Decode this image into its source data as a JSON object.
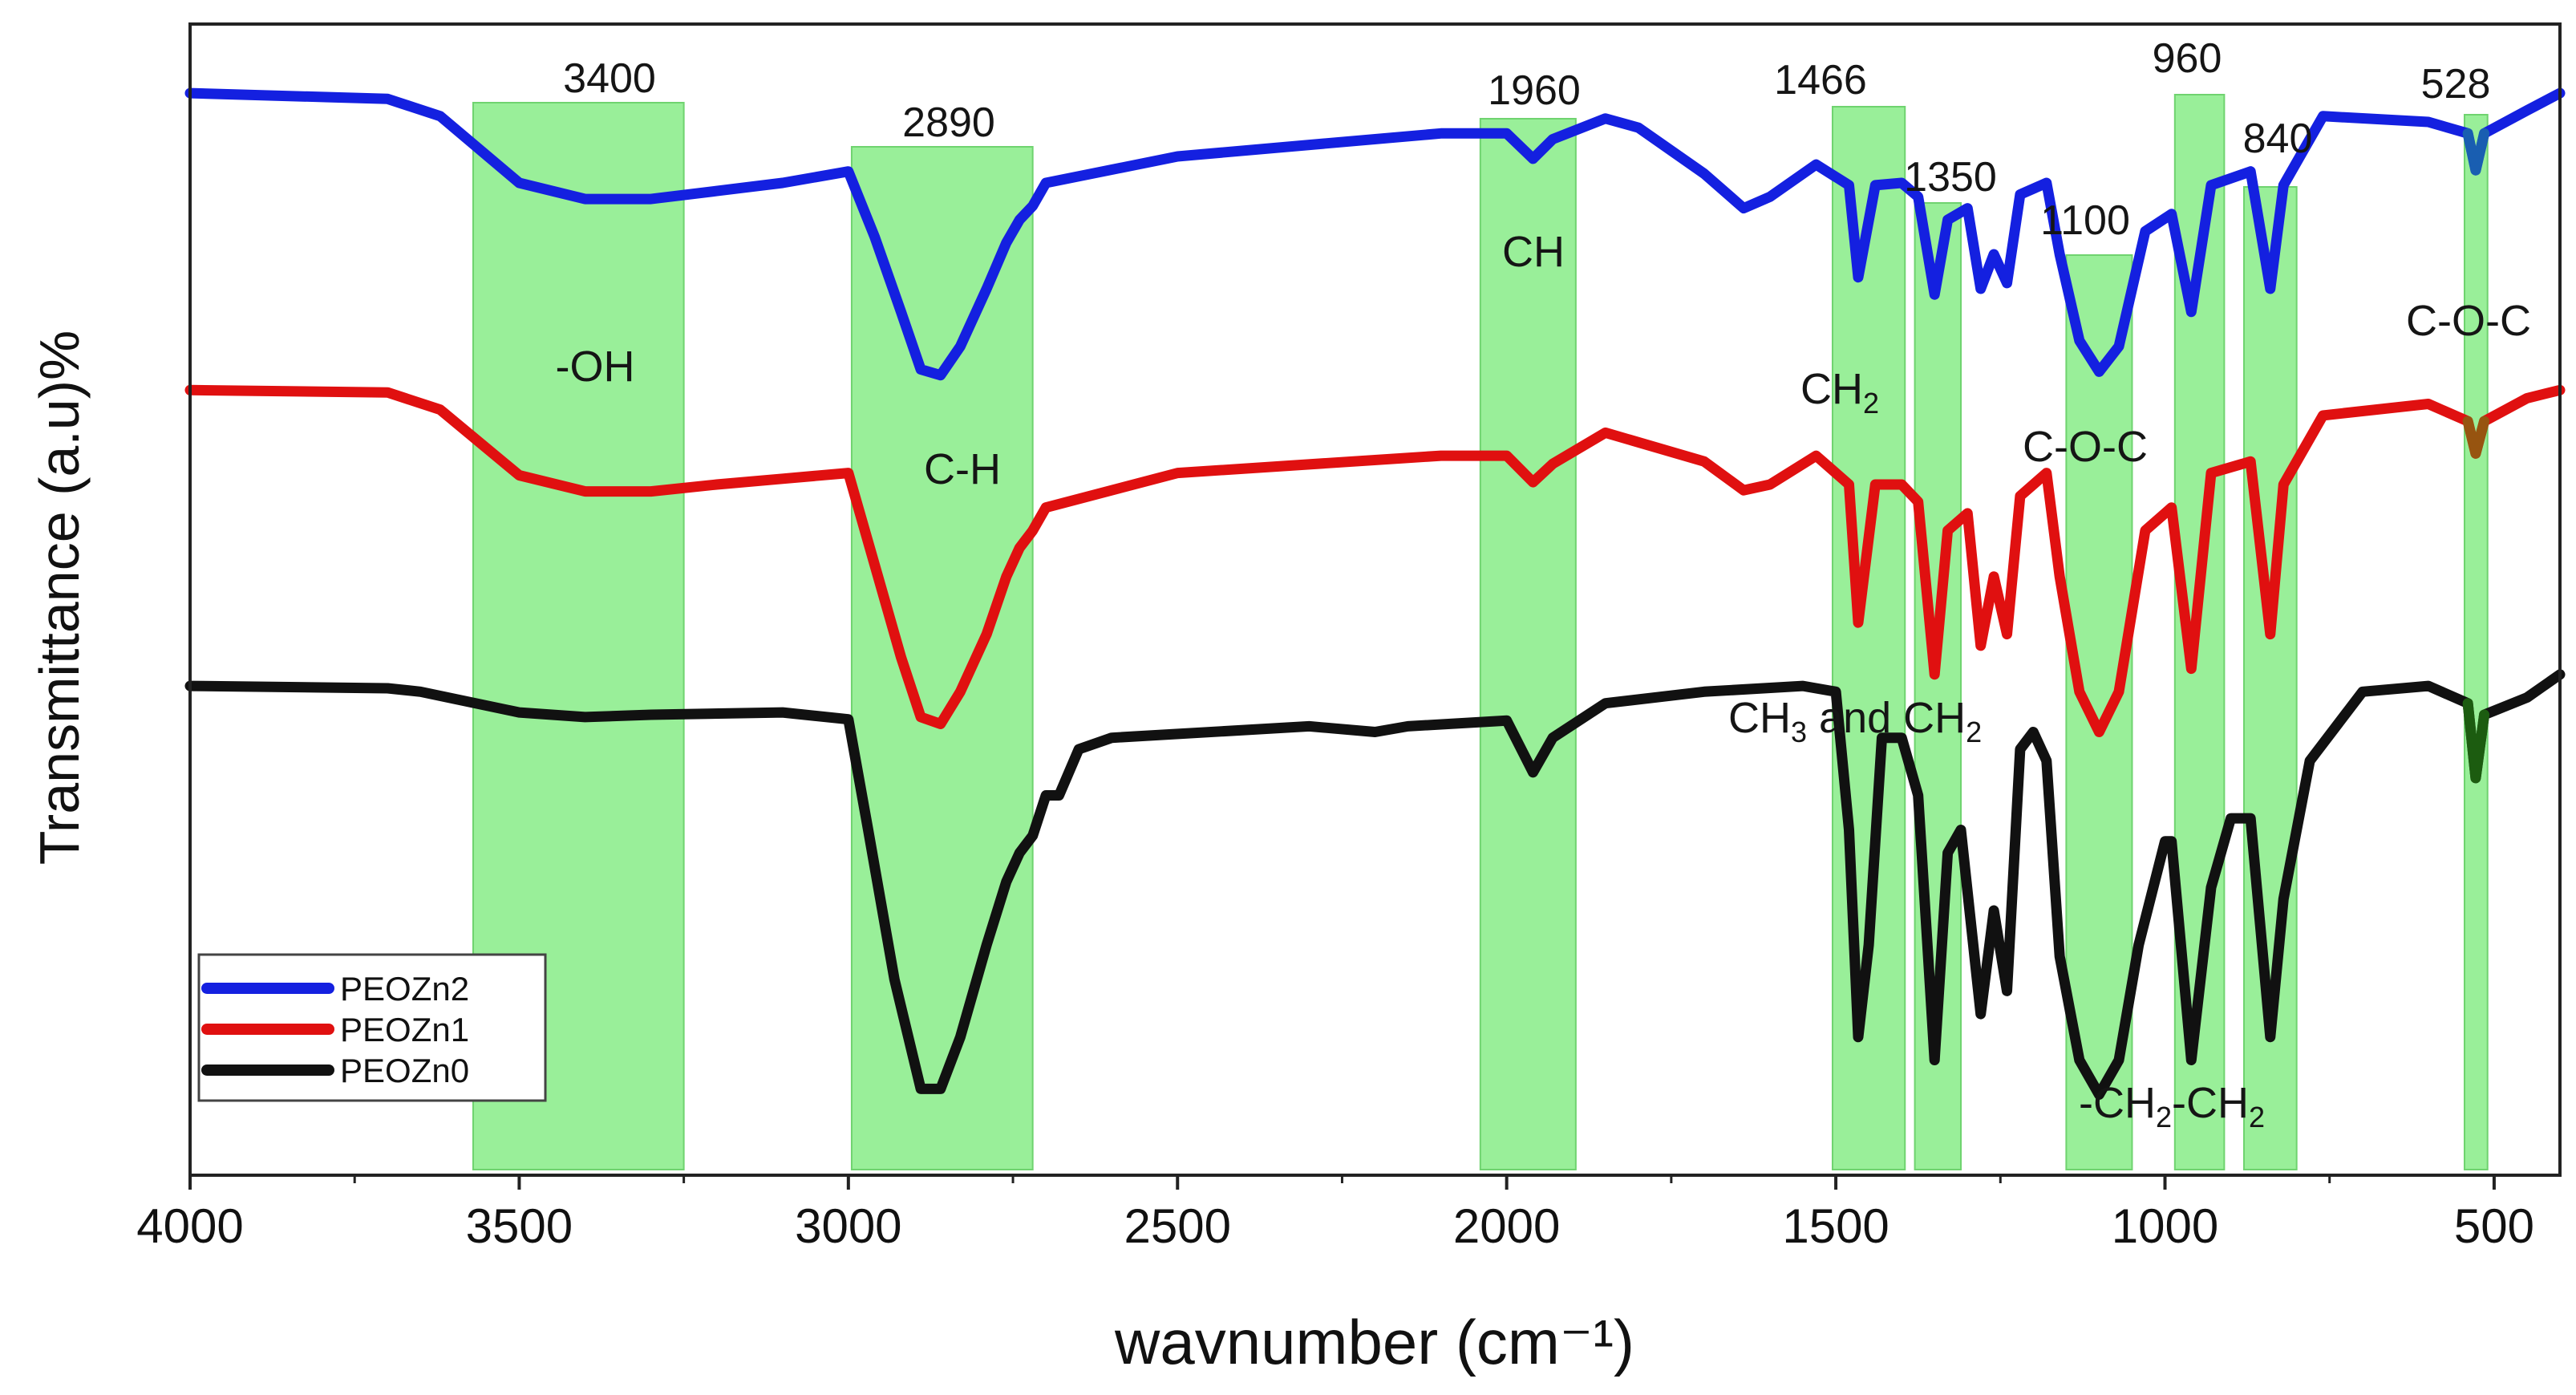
{
  "chart_data": {
    "type": "line",
    "title": "",
    "xlabel": "wavnumber (cm⁻¹)",
    "ylabel": "Transmittance (a.u)%",
    "xlim": [
      4000,
      400
    ],
    "x_ticks": [
      4000,
      3500,
      3000,
      2500,
      2000,
      1500,
      1000,
      500
    ],
    "y_ticks": [],
    "grid": false,
    "legend_position": "bottom-left",
    "series": [
      {
        "name": "PEOZn2",
        "color": "#1420e0",
        "overlay_color": "#1a6aa8",
        "baseline": 0.94,
        "points": [
          [
            4000,
            0.94
          ],
          [
            3700,
            0.935
          ],
          [
            3620,
            0.92
          ],
          [
            3500,
            0.862
          ],
          [
            3400,
            0.848
          ],
          [
            3300,
            0.848
          ],
          [
            3200,
            0.855
          ],
          [
            3100,
            0.862
          ],
          [
            3000,
            0.872
          ],
          [
            2960,
            0.815
          ],
          [
            2920,
            0.75
          ],
          [
            2890,
            0.7
          ],
          [
            2860,
            0.695
          ],
          [
            2830,
            0.72
          ],
          [
            2790,
            0.77
          ],
          [
            2760,
            0.81
          ],
          [
            2740,
            0.83
          ],
          [
            2720,
            0.842
          ],
          [
            2700,
            0.862
          ],
          [
            2500,
            0.885
          ],
          [
            2100,
            0.905
          ],
          [
            2000,
            0.905
          ],
          [
            1960,
            0.883
          ],
          [
            1930,
            0.9
          ],
          [
            1850,
            0.918
          ],
          [
            1800,
            0.91
          ],
          [
            1700,
            0.87
          ],
          [
            1640,
            0.84
          ],
          [
            1600,
            0.85
          ],
          [
            1530,
            0.878
          ],
          [
            1480,
            0.86
          ],
          [
            1466,
            0.78
          ],
          [
            1440,
            0.86
          ],
          [
            1400,
            0.862
          ],
          [
            1375,
            0.85
          ],
          [
            1350,
            0.765
          ],
          [
            1330,
            0.83
          ],
          [
            1300,
            0.84
          ],
          [
            1280,
            0.77
          ],
          [
            1260,
            0.8
          ],
          [
            1240,
            0.775
          ],
          [
            1220,
            0.852
          ],
          [
            1180,
            0.862
          ],
          [
            1160,
            0.8
          ],
          [
            1130,
            0.725
          ],
          [
            1100,
            0.698
          ],
          [
            1070,
            0.72
          ],
          [
            1030,
            0.82
          ],
          [
            990,
            0.835
          ],
          [
            960,
            0.75
          ],
          [
            930,
            0.86
          ],
          [
            870,
            0.872
          ],
          [
            840,
            0.77
          ],
          [
            820,
            0.86
          ],
          [
            760,
            0.92
          ],
          [
            600,
            0.915
          ],
          [
            540,
            0.905
          ],
          [
            528,
            0.873
          ],
          [
            515,
            0.905
          ],
          [
            450,
            0.925
          ],
          [
            400,
            0.94
          ]
        ]
      },
      {
        "name": "PEOZn1",
        "color": "#e01010",
        "overlay_color": "#8a6010",
        "baseline": 0.682,
        "points": [
          [
            4000,
            0.682
          ],
          [
            3700,
            0.68
          ],
          [
            3620,
            0.665
          ],
          [
            3500,
            0.608
          ],
          [
            3400,
            0.594
          ],
          [
            3300,
            0.594
          ],
          [
            3200,
            0.6
          ],
          [
            3100,
            0.605
          ],
          [
            3000,
            0.61
          ],
          [
            2960,
            0.53
          ],
          [
            2920,
            0.45
          ],
          [
            2890,
            0.398
          ],
          [
            2860,
            0.392
          ],
          [
            2830,
            0.42
          ],
          [
            2790,
            0.47
          ],
          [
            2760,
            0.52
          ],
          [
            2740,
            0.545
          ],
          [
            2720,
            0.56
          ],
          [
            2700,
            0.58
          ],
          [
            2500,
            0.61
          ],
          [
            2100,
            0.625
          ],
          [
            2000,
            0.625
          ],
          [
            1960,
            0.602
          ],
          [
            1930,
            0.618
          ],
          [
            1850,
            0.645
          ],
          [
            1700,
            0.62
          ],
          [
            1640,
            0.595
          ],
          [
            1600,
            0.6
          ],
          [
            1530,
            0.625
          ],
          [
            1480,
            0.6
          ],
          [
            1466,
            0.48
          ],
          [
            1440,
            0.6
          ],
          [
            1400,
            0.6
          ],
          [
            1375,
            0.585
          ],
          [
            1350,
            0.435
          ],
          [
            1330,
            0.56
          ],
          [
            1300,
            0.575
          ],
          [
            1280,
            0.46
          ],
          [
            1260,
            0.52
          ],
          [
            1240,
            0.47
          ],
          [
            1220,
            0.59
          ],
          [
            1180,
            0.61
          ],
          [
            1160,
            0.52
          ],
          [
            1130,
            0.42
          ],
          [
            1100,
            0.385
          ],
          [
            1070,
            0.42
          ],
          [
            1030,
            0.56
          ],
          [
            990,
            0.58
          ],
          [
            960,
            0.44
          ],
          [
            930,
            0.61
          ],
          [
            870,
            0.62
          ],
          [
            840,
            0.47
          ],
          [
            820,
            0.6
          ],
          [
            760,
            0.66
          ],
          [
            600,
            0.67
          ],
          [
            540,
            0.655
          ],
          [
            528,
            0.627
          ],
          [
            515,
            0.655
          ],
          [
            450,
            0.675
          ],
          [
            400,
            0.682
          ]
        ]
      },
      {
        "name": "PEOZn0",
        "color": "#111111",
        "overlay_color": "#1e6a10",
        "baseline": 0.425,
        "points": [
          [
            4000,
            0.425
          ],
          [
            3700,
            0.423
          ],
          [
            3650,
            0.42
          ],
          [
            3500,
            0.402
          ],
          [
            3400,
            0.398
          ],
          [
            3300,
            0.4
          ],
          [
            3100,
            0.402
          ],
          [
            3000,
            0.396
          ],
          [
            2970,
            0.3
          ],
          [
            2930,
            0.17
          ],
          [
            2890,
            0.075
          ],
          [
            2860,
            0.075
          ],
          [
            2830,
            0.12
          ],
          [
            2790,
            0.2
          ],
          [
            2760,
            0.255
          ],
          [
            2740,
            0.28
          ],
          [
            2720,
            0.295
          ],
          [
            2700,
            0.33
          ],
          [
            2680,
            0.33
          ],
          [
            2650,
            0.37
          ],
          [
            2600,
            0.38
          ],
          [
            2300,
            0.39
          ],
          [
            2200,
            0.385
          ],
          [
            2150,
            0.39
          ],
          [
            2000,
            0.395
          ],
          [
            1960,
            0.35
          ],
          [
            1930,
            0.38
          ],
          [
            1850,
            0.41
          ],
          [
            1700,
            0.42
          ],
          [
            1550,
            0.425
          ],
          [
            1500,
            0.42
          ],
          [
            1480,
            0.3
          ],
          [
            1466,
            0.12
          ],
          [
            1450,
            0.2
          ],
          [
            1430,
            0.38
          ],
          [
            1400,
            0.38
          ],
          [
            1375,
            0.33
          ],
          [
            1350,
            0.1
          ],
          [
            1330,
            0.28
          ],
          [
            1310,
            0.3
          ],
          [
            1280,
            0.14
          ],
          [
            1260,
            0.23
          ],
          [
            1240,
            0.16
          ],
          [
            1220,
            0.37
          ],
          [
            1200,
            0.385
          ],
          [
            1180,
            0.36
          ],
          [
            1160,
            0.19
          ],
          [
            1130,
            0.1
          ],
          [
            1100,
            0.07
          ],
          [
            1070,
            0.1
          ],
          [
            1040,
            0.2
          ],
          [
            1000,
            0.29
          ],
          [
            990,
            0.29
          ],
          [
            960,
            0.1
          ],
          [
            930,
            0.25
          ],
          [
            900,
            0.31
          ],
          [
            870,
            0.31
          ],
          [
            840,
            0.12
          ],
          [
            820,
            0.24
          ],
          [
            780,
            0.36
          ],
          [
            700,
            0.42
          ],
          [
            600,
            0.425
          ],
          [
            540,
            0.41
          ],
          [
            528,
            0.345
          ],
          [
            515,
            0.4
          ],
          [
            450,
            0.415
          ],
          [
            400,
            0.435
          ]
        ]
      }
    ],
    "bands": [
      {
        "lo": 3250,
        "hi": 3570,
        "label": "3400"
      },
      {
        "lo": 2720,
        "hi": 2995,
        "label": "2890"
      },
      {
        "lo": 1895,
        "hi": 2040,
        "label": "1960"
      },
      {
        "lo": 1395,
        "hi": 1505,
        "label": "1466"
      },
      {
        "lo": 1310,
        "hi": 1380,
        "label": "1350"
      },
      {
        "lo": 1050,
        "hi": 1150,
        "label": "1100"
      },
      {
        "lo": 910,
        "hi": 985,
        "label": "960"
      },
      {
        "lo": 800,
        "hi": 880,
        "label": "840"
      },
      {
        "lo": 510,
        "hi": 545,
        "label": "528"
      }
    ],
    "annotations": [
      {
        "text": "-OH",
        "sub": "",
        "after": ""
      },
      {
        "text": "C-H",
        "sub": "",
        "after": ""
      },
      {
        "text": "CH",
        "sub": "",
        "after": ""
      },
      {
        "text": "CH",
        "sub": "2",
        "after": ""
      },
      {
        "text": "C-O-C",
        "sub": "",
        "after": ""
      },
      {
        "text": "C-O-C",
        "sub": "",
        "after": ""
      },
      {
        "text": "CH",
        "sub": "3",
        "after": " and CH",
        "sub2": "2"
      },
      {
        "text": "-CH",
        "sub": "2",
        "after": "-CH",
        "sub2": "2"
      }
    ]
  }
}
